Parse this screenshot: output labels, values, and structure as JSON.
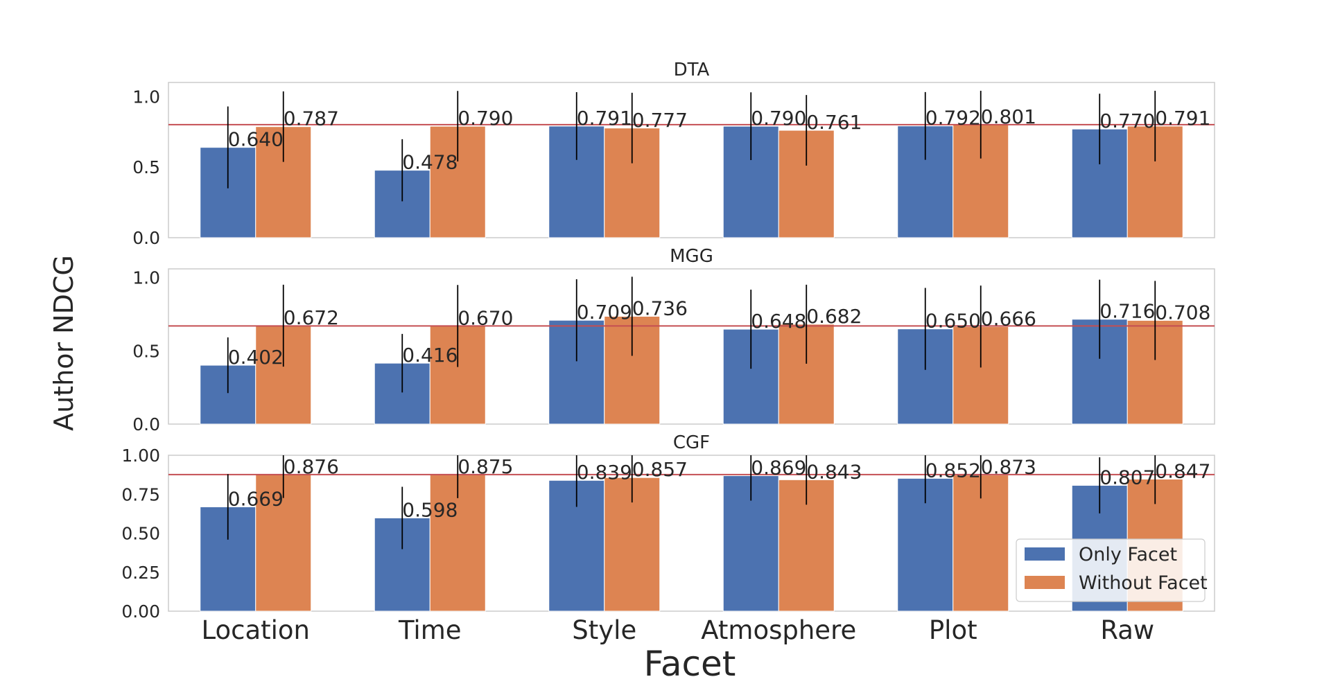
{
  "chart_data": {
    "type": "bar",
    "xlabel": "Facet",
    "ylabel": "Author NDCG",
    "categories": [
      "Location",
      "Time",
      "Style",
      "Atmosphere",
      "Plot",
      "Raw"
    ],
    "legend": {
      "placement": "lower-right",
      "entries": [
        "Only Facet",
        "Without Facet"
      ]
    },
    "colors": {
      "only_facet": "#4c72b0",
      "without_facet": "#dd8452",
      "reference_line": "#c44e52",
      "error_bar": "#000000",
      "frame": "#cccccc"
    },
    "grid": false,
    "panels": [
      {
        "title": "DTA",
        "ylim": [
          0,
          1.1
        ],
        "yticks": [
          "0.0",
          "0.5",
          "1.0"
        ],
        "ytick_values": [
          0,
          0.5,
          1.0
        ],
        "reference_line": 0.801,
        "series": [
          {
            "name": "Only Facet",
            "values": [
              0.64,
              0.478,
              0.791,
              0.79,
              0.792,
              0.77
            ],
            "labels": [
              "0.640",
              "0.478",
              "0.791",
              "0.790",
              "0.792",
              "0.770"
            ],
            "err": [
              0.29,
              0.22,
              0.24,
              0.24,
              0.24,
              0.25
            ]
          },
          {
            "name": "Without Facet",
            "values": [
              0.787,
              0.79,
              0.777,
              0.761,
              0.801,
              0.791
            ],
            "labels": [
              "0.787",
              "0.790",
              "0.777",
              "0.761",
              "0.801",
              "0.791"
            ],
            "err": [
              0.25,
              0.25,
              0.25,
              0.25,
              0.24,
              0.25
            ]
          }
        ]
      },
      {
        "title": "MGG",
        "ylim": [
          0,
          1.06
        ],
        "yticks": [
          "0.0",
          "0.5",
          "1.0"
        ],
        "ytick_values": [
          0,
          0.5,
          1.0
        ],
        "reference_line": 0.67,
        "series": [
          {
            "name": "Only Facet",
            "values": [
              0.402,
              0.416,
              0.709,
              0.648,
              0.65,
              0.716
            ],
            "labels": [
              "0.402",
              "0.416",
              "0.709",
              "0.648",
              "0.650",
              "0.716"
            ],
            "err": [
              0.19,
              0.2,
              0.28,
              0.27,
              0.28,
              0.27
            ]
          },
          {
            "name": "Without Facet",
            "values": [
              0.672,
              0.67,
              0.736,
              0.682,
              0.666,
              0.708
            ],
            "labels": [
              "0.672",
              "0.670",
              "0.736",
              "0.682",
              "0.666",
              "0.708"
            ],
            "err": [
              0.28,
              0.28,
              0.27,
              0.27,
              0.28,
              0.27
            ]
          }
        ]
      },
      {
        "title": "CGF",
        "ylim": [
          0,
          1.0
        ],
        "yticks": [
          "0.00",
          "0.25",
          "0.50",
          "0.75",
          "1.00"
        ],
        "ytick_values": [
          0,
          0.25,
          0.5,
          0.75,
          1.0
        ],
        "reference_line": 0.876,
        "series": [
          {
            "name": "Only Facet",
            "values": [
              0.669,
              0.598,
              0.839,
              0.869,
              0.852,
              0.807
            ],
            "labels": [
              "0.669",
              "0.598",
              "0.839",
              "0.869",
              "0.852",
              "0.807"
            ],
            "err": [
              0.21,
              0.2,
              0.17,
              0.16,
              0.16,
              0.18
            ]
          },
          {
            "name": "Without Facet",
            "values": [
              0.876,
              0.875,
              0.857,
              0.843,
              0.873,
              0.847
            ],
            "labels": [
              "0.876",
              "0.875",
              "0.857",
              "0.843",
              "0.873",
              "0.847"
            ],
            "err": [
              0.15,
              0.15,
              0.16,
              0.16,
              0.15,
              0.16
            ]
          }
        ]
      }
    ]
  }
}
